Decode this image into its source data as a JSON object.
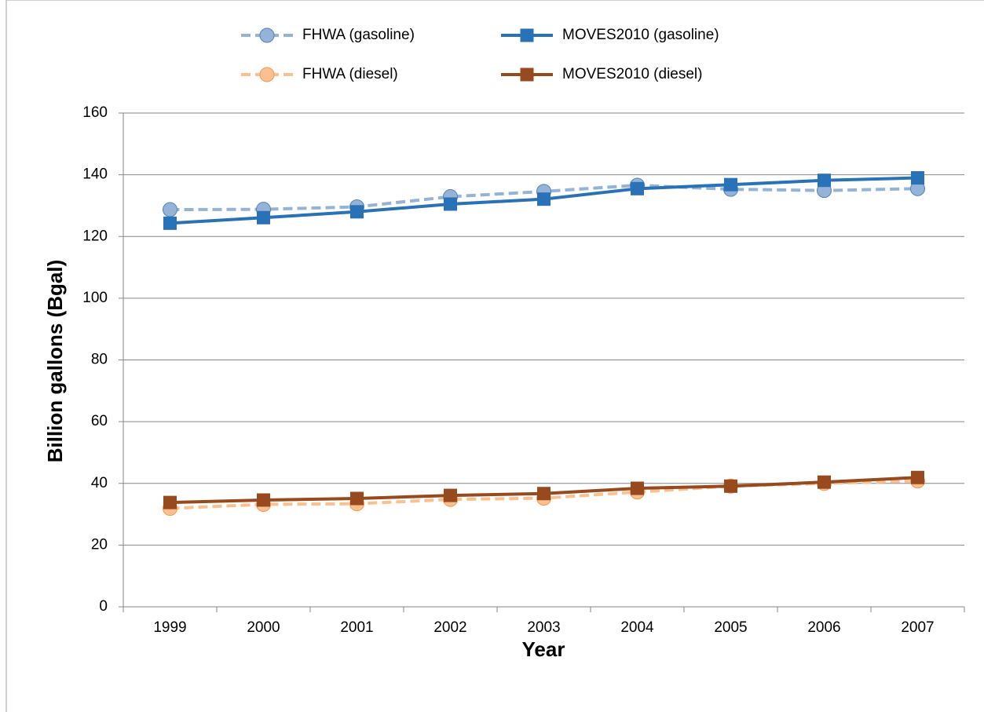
{
  "chart_data": {
    "type": "line",
    "x_label": "Year",
    "y_label": "Billion gallons (Bgal)",
    "categories": [
      "1999",
      "2000",
      "2001",
      "2002",
      "2003",
      "2004",
      "2005",
      "2006",
      "2007"
    ],
    "series": [
      {
        "name": "FHWA (gasoline)",
        "color": "#95b3d7",
        "dashed": true,
        "marker": "circle",
        "values": [
          128.7,
          128.8,
          129.6,
          132.9,
          134.6,
          136.6,
          135.3,
          134.9,
          135.5
        ]
      },
      {
        "name": "MOVES2010 (gasoline)",
        "color": "#2a72b8",
        "dashed": false,
        "marker": "square",
        "values": [
          124.3,
          126.1,
          128.0,
          130.5,
          132.1,
          135.5,
          136.8,
          138.2,
          139.0
        ]
      },
      {
        "name": "FHWA (diesel)",
        "color": "#fac090",
        "dashed": true,
        "marker": "circle",
        "values": [
          31.9,
          33.2,
          33.4,
          34.8,
          35.2,
          37.2,
          39.1,
          40.0,
          40.8
        ]
      },
      {
        "name": "MOVES2010 (diesel)",
        "color": "#984a1f",
        "dashed": false,
        "marker": "square",
        "values": [
          33.8,
          34.6,
          35.1,
          36.1,
          36.7,
          38.4,
          39.1,
          40.4,
          41.9
        ]
      }
    ],
    "ylim": [
      0,
      160
    ],
    "yticks": [
      0,
      20,
      40,
      60,
      80,
      100,
      120,
      140,
      160
    ],
    "grid": true
  }
}
